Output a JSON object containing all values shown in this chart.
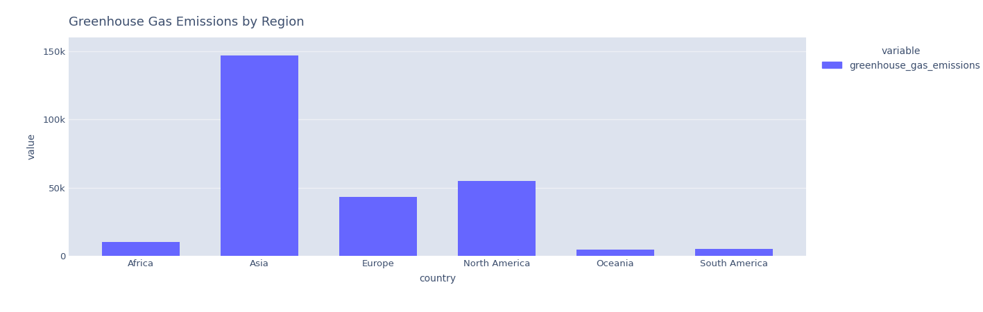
{
  "title": "Greenhouse Gas Emissions by Region",
  "xlabel": "country",
  "ylabel": "value",
  "categories": [
    "Africa",
    "Asia",
    "Europe",
    "North America",
    "Oceania",
    "South America"
  ],
  "values": [
    10000,
    147000,
    43000,
    55000,
    4500,
    5000
  ],
  "bar_color": "#6666ff",
  "fig_background_color": "#ffffff",
  "plot_bg_color": "#dde3ee",
  "grid_color": "#eef0f5",
  "legend_title": "variable",
  "legend_label": "greenhouse_gas_emissions",
  "yticks": [
    0,
    50000,
    100000,
    150000
  ],
  "ytick_labels": [
    "0",
    "50k",
    "100k",
    "150k"
  ],
  "title_fontsize": 13,
  "label_fontsize": 10,
  "tick_fontsize": 9.5,
  "legend_fontsize": 10,
  "text_color": "#3d4f6e",
  "ylim": [
    0,
    160000
  ]
}
